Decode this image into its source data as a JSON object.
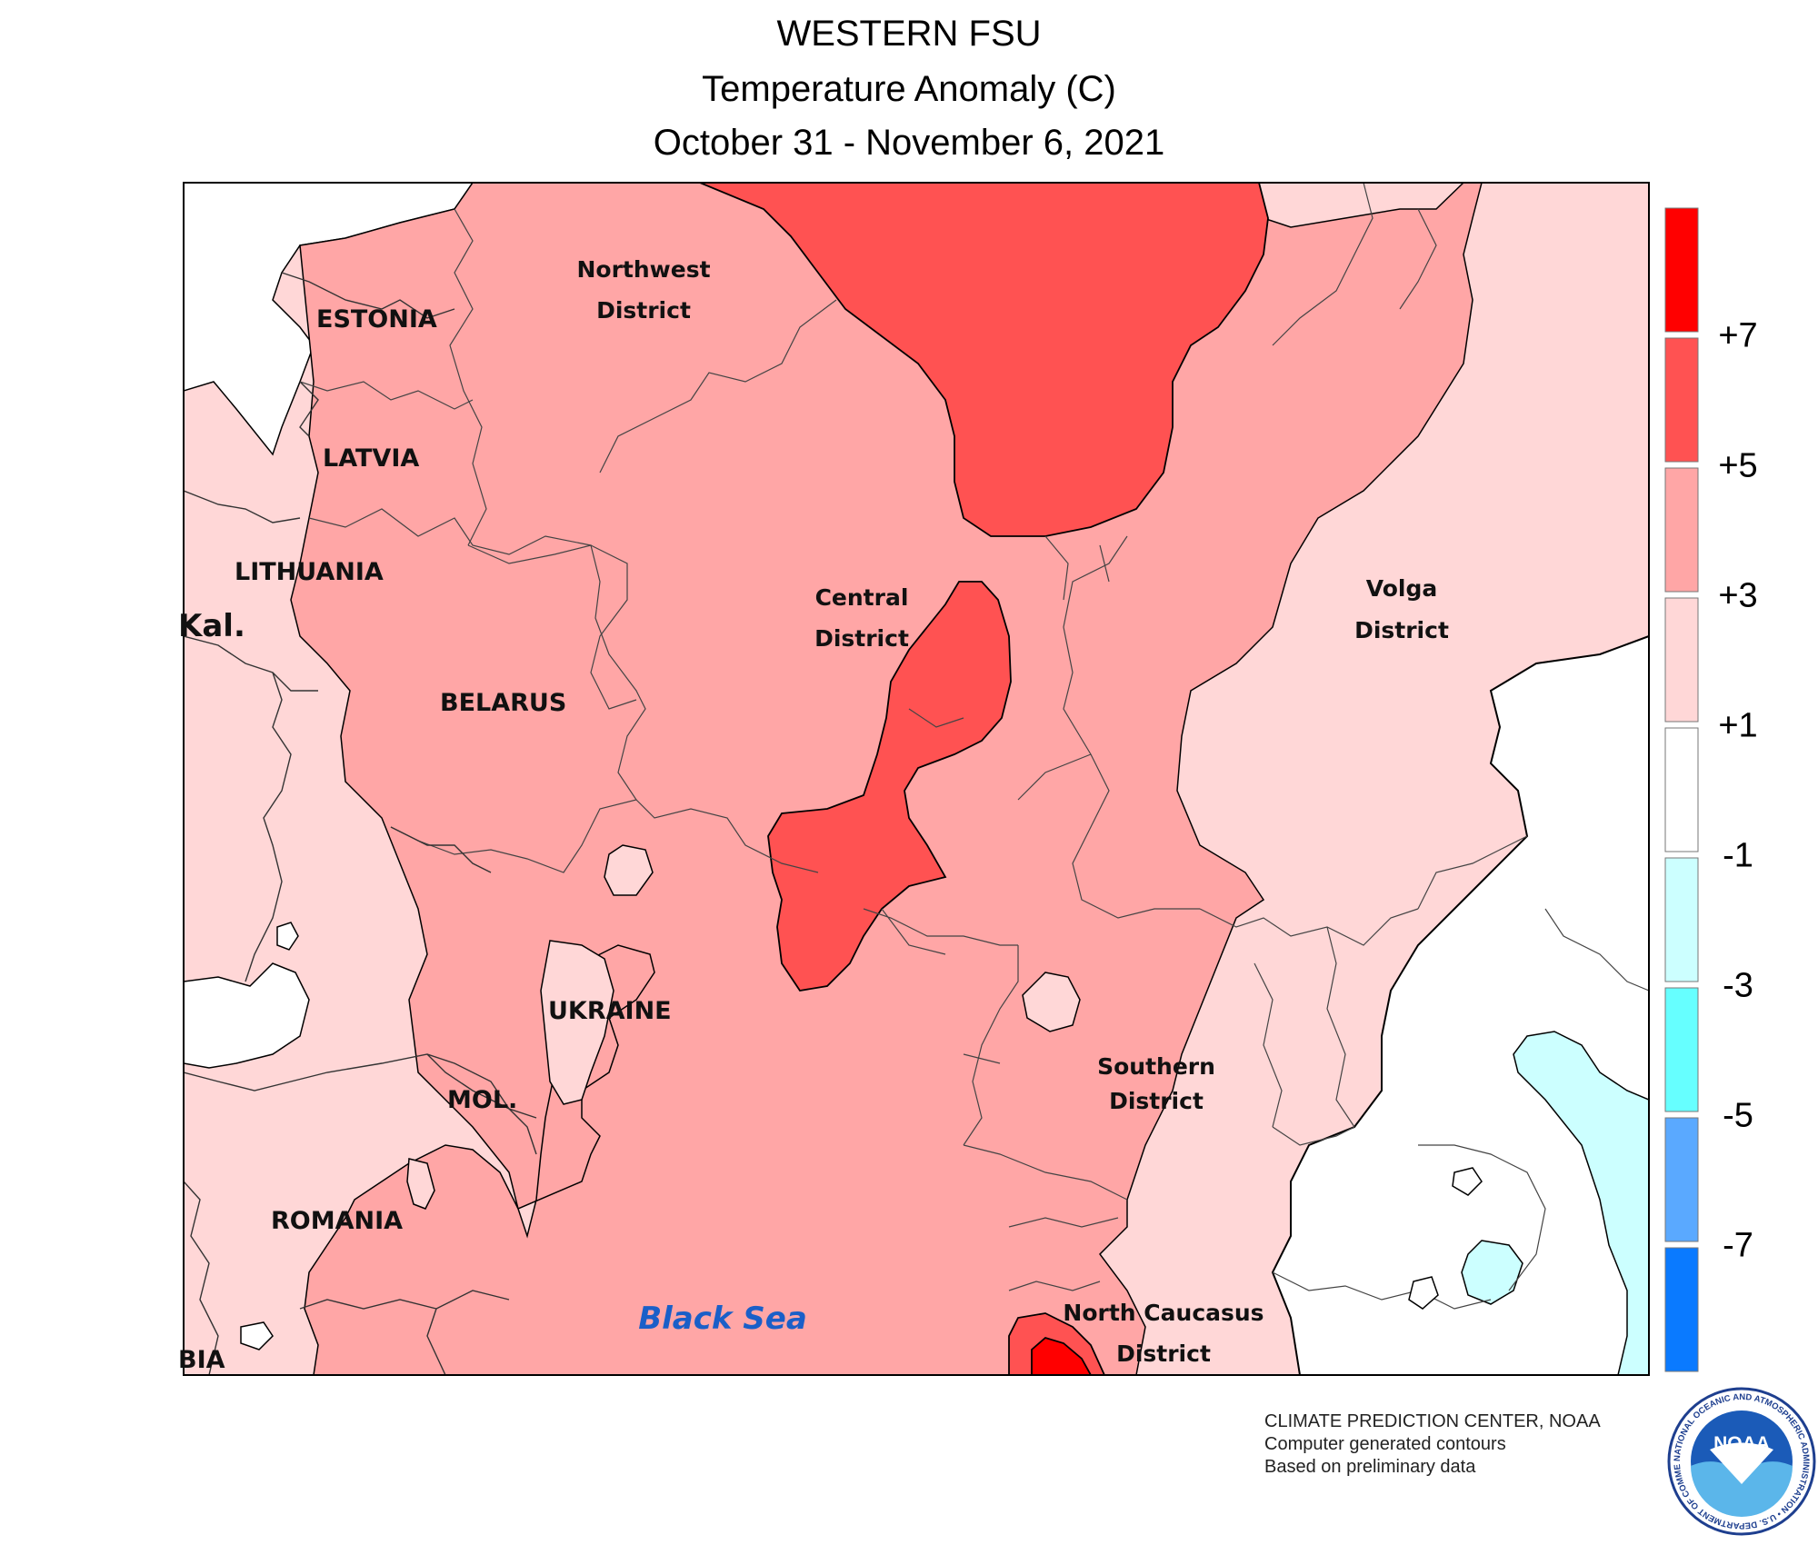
{
  "titles": {
    "region": "WESTERN FSU",
    "variable": "Temperature Anomaly (C)",
    "period": "October 31 - November 6, 2021"
  },
  "labels": {
    "countries": {
      "estonia": "ESTONIA",
      "latvia": "LATVIA",
      "lithuania": "LITHUANIA",
      "kaliningrad": "Kal.",
      "belarus": "BELARUS",
      "ukraine": "UKRAINE",
      "moldova": "MOL.",
      "romania": "ROMANIA",
      "serbia_partial": "BIA"
    },
    "districts": {
      "northwest": [
        "Northwest",
        "District"
      ],
      "central": [
        "Central",
        "District"
      ],
      "volga": [
        "Volga",
        "District"
      ],
      "southern": [
        "Southern",
        "District"
      ],
      "north_caucasus": [
        "North Caucasus",
        "District"
      ]
    },
    "sea": "Black Sea"
  },
  "legend": {
    "colors": [
      "#ff0000",
      "#ff5252",
      "#ffa6a6",
      "#ffd7d7",
      "#ffffff",
      "#ccffff",
      "#66ffff",
      "#5aa9ff",
      "#0a7aff"
    ],
    "tick_labels": [
      "+7",
      "+5",
      "+3",
      "+1",
      "-1",
      "-3",
      "-5",
      "-7"
    ]
  },
  "colors": {
    "anomaly_plus_5_7": "#ff5252",
    "anomaly_plus_3_5": "#ffa6a6",
    "anomaly_plus_1_3": "#ffd7d7",
    "anomaly_minus_1_plus_1": "#ffffff",
    "anomaly_minus_3_minus_1": "#ccffff",
    "anomaly_above_7": "#ff0000",
    "sea_label": "#1a5fc8"
  },
  "credits": {
    "line1": "CLIMATE PREDICTION CENTER, NOAA",
    "line2": "Computer generated contours",
    "line3": "Based on preliminary data"
  },
  "logo": {
    "name": "noaa-logo",
    "text": "NOAA",
    "ring_text": "NATIONAL OCEANIC AND ATMOSPHERIC ADMINISTRATION • U.S. DEPARTMENT OF COMMERCE"
  }
}
